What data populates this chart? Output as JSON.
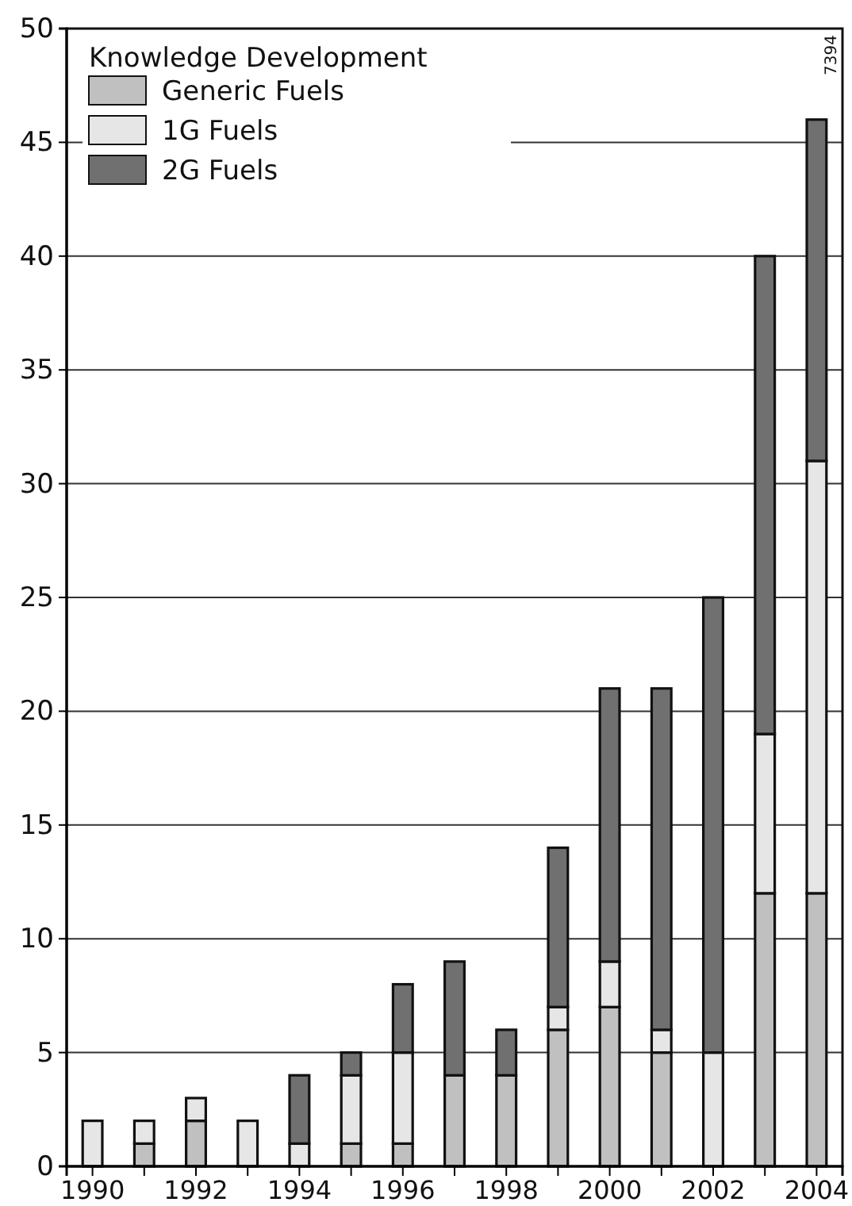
{
  "chart_data": {
    "type": "bar",
    "stacked": true,
    "categories": [
      "1990",
      null,
      "1992",
      null,
      "1994",
      null,
      "1996",
      null,
      "1998",
      null,
      "2000",
      null,
      "2002",
      null,
      "2004"
    ],
    "series": [
      {
        "name": "Generic Fuels",
        "color": "#c0c0c0",
        "values": [
          0,
          1,
          2,
          0,
          0,
          1,
          1,
          4,
          4,
          6,
          7,
          5,
          0,
          12,
          12
        ]
      },
      {
        "name": "1G Fuels",
        "color": "#e6e6e6",
        "values": [
          2,
          1,
          1,
          2,
          1,
          3,
          4,
          0,
          0,
          1,
          2,
          1,
          5,
          7,
          19
        ]
      },
      {
        "name": "2G Fuels",
        "color": "#707070",
        "values": [
          0,
          0,
          0,
          0,
          3,
          1,
          3,
          5,
          2,
          7,
          12,
          15,
          20,
          21,
          15
        ]
      }
    ],
    "legend_title": "Knowledge Development",
    "legend": "top left",
    "ylim": [
      0,
      50
    ],
    "yticks": [
      0,
      5,
      10,
      15,
      20,
      25,
      30,
      35,
      40,
      45,
      50
    ],
    "grid": "y",
    "annotations": [
      "7394"
    ]
  }
}
